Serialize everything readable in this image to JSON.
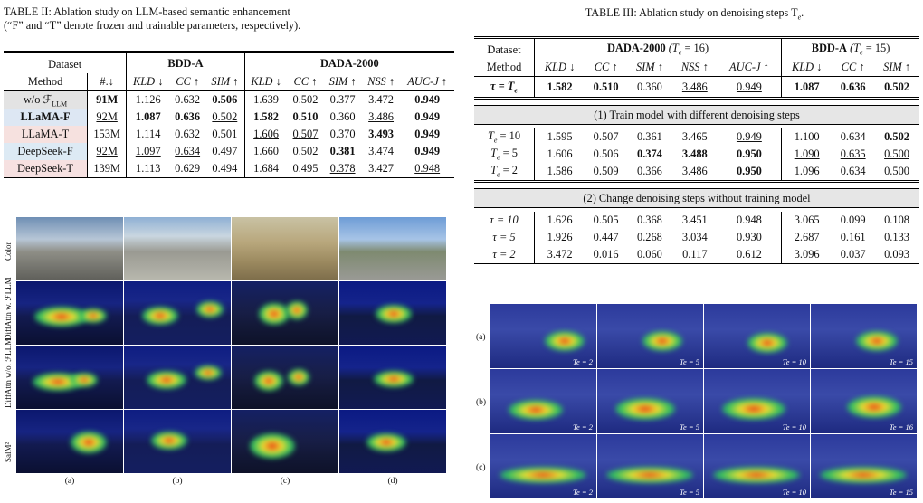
{
  "table2": {
    "caption_line1": "TABLE II: Ablation study on LLM-based semantic enhancement",
    "caption_line2": "(“F” and “T” denote frozen and trainable parameters, respectively).",
    "h_dataset": "Dataset",
    "h_bdda": "BDD-A",
    "h_dada": "DADA-2000",
    "h_method": "Method",
    "h_params": "#.↓",
    "cols": [
      "KLD ↓",
      "CC ↑",
      "SIM ↑",
      "KLD ↓",
      "CC ↑",
      "SIM ↑",
      "NSS ↑",
      "AUC-J ↑"
    ],
    "rows": [
      {
        "method": "w/o ℱ",
        "sub": "LLM",
        "params": "91M",
        "vals": [
          "1.126",
          "0.632",
          "0.506",
          "1.639",
          "0.502",
          "0.377",
          "3.472",
          "0.949"
        ]
      },
      {
        "method": "LLaMA-F",
        "sub": "",
        "params": "92M",
        "vals": [
          "1.087",
          "0.636",
          "0.502",
          "1.582",
          "0.510",
          "0.360",
          "3.486",
          "0.949"
        ]
      },
      {
        "method": "LLaMA-T",
        "sub": "",
        "params": "153M",
        "vals": [
          "1.114",
          "0.632",
          "0.501",
          "1.606",
          "0.507",
          "0.370",
          "3.493",
          "0.949"
        ]
      },
      {
        "method": "DeepSeek-F",
        "sub": "",
        "params": "92M",
        "vals": [
          "1.097",
          "0.634",
          "0.497",
          "1.660",
          "0.502",
          "0.381",
          "3.474",
          "0.949"
        ]
      },
      {
        "method": "DeepSeek-T",
        "sub": "",
        "params": "139M",
        "vals": [
          "1.113",
          "0.629",
          "0.494",
          "1.684",
          "0.495",
          "0.378",
          "3.427",
          "0.948"
        ]
      }
    ]
  },
  "table3": {
    "caption": "TABLE III: Ablation study on denoising steps T",
    "caption_sub": "e",
    "h_dataset": "Dataset",
    "h_dada": "DADA-2000",
    "h_dada_param": "(T",
    "h_dada_param_sub": "e",
    "h_dada_param_val": " = 16)",
    "h_bdda": "BDD-A",
    "h_bdda_param": "(T",
    "h_bdda_param_sub": "e",
    "h_bdda_param_val": " = 15)",
    "h_method": "Method",
    "cols": [
      "KLD ↓",
      "CC ↑",
      "SIM ↑",
      "NSS ↑",
      "AUC-J ↑",
      "KLD ↓",
      "CC ↑",
      "SIM ↑"
    ],
    "base_label": "τ = T",
    "base_label_sub": "e",
    "base_vals": [
      "1.582",
      "0.510",
      "0.360",
      "3.486",
      "0.949",
      "1.087",
      "0.636",
      "0.502"
    ],
    "sec1": "(1) Train model with different denoising steps",
    "sec1_rows": [
      {
        "label": "T",
        "sub": "e",
        "eq": " = 10",
        "vals": [
          "1.595",
          "0.507",
          "0.361",
          "3.465",
          "0.949",
          "1.100",
          "0.634",
          "0.502"
        ]
      },
      {
        "label": "T",
        "sub": "e",
        "eq": " = 5",
        "vals": [
          "1.606",
          "0.506",
          "0.374",
          "3.488",
          "0.950",
          "1.090",
          "0.635",
          "0.500"
        ]
      },
      {
        "label": "T",
        "sub": "e",
        "eq": " = 2",
        "vals": [
          "1.586",
          "0.509",
          "0.366",
          "3.486",
          "0.950",
          "1.096",
          "0.634",
          "0.500"
        ]
      }
    ],
    "sec2": "(2) Change denoising steps without training model",
    "sec2_rows": [
      {
        "label": "τ = 10",
        "vals": [
          "1.626",
          "0.505",
          "0.368",
          "3.451",
          "0.948",
          "3.065",
          "0.099",
          "0.108"
        ]
      },
      {
        "label": "τ = 5",
        "vals": [
          "1.926",
          "0.447",
          "0.268",
          "3.034",
          "0.930",
          "2.687",
          "0.161",
          "0.133"
        ]
      },
      {
        "label": "τ = 2",
        "vals": [
          "3.472",
          "0.016",
          "0.060",
          "0.117",
          "0.612",
          "3.096",
          "0.037",
          "0.093"
        ]
      }
    ]
  },
  "fig_left": {
    "row_labels": [
      "Color",
      "DiffAttn w. ℱLLM",
      "DiffAttn w/o. ℱLLM",
      "SalM²"
    ],
    "col_labels": [
      "(a)",
      "(b)",
      "(c)",
      "(d)"
    ]
  },
  "fig_right": {
    "row_labels": [
      "(a)",
      "(b)",
      "(c)"
    ],
    "te_labels": [
      [
        "Te = 2",
        "Te = 5",
        "Te = 10",
        "Te = 15"
      ],
      [
        "Te = 2",
        "Te = 5",
        "Te = 10",
        "Te = 16"
      ],
      [
        "Te = 2",
        "Te = 5",
        "Te = 10",
        "Te = 15"
      ]
    ]
  },
  "colors": {
    "heat_blue": "#1a2a9c",
    "heat_red": "#e02010",
    "heat_yellow": "#f4e030",
    "heat_green": "#30c060"
  }
}
